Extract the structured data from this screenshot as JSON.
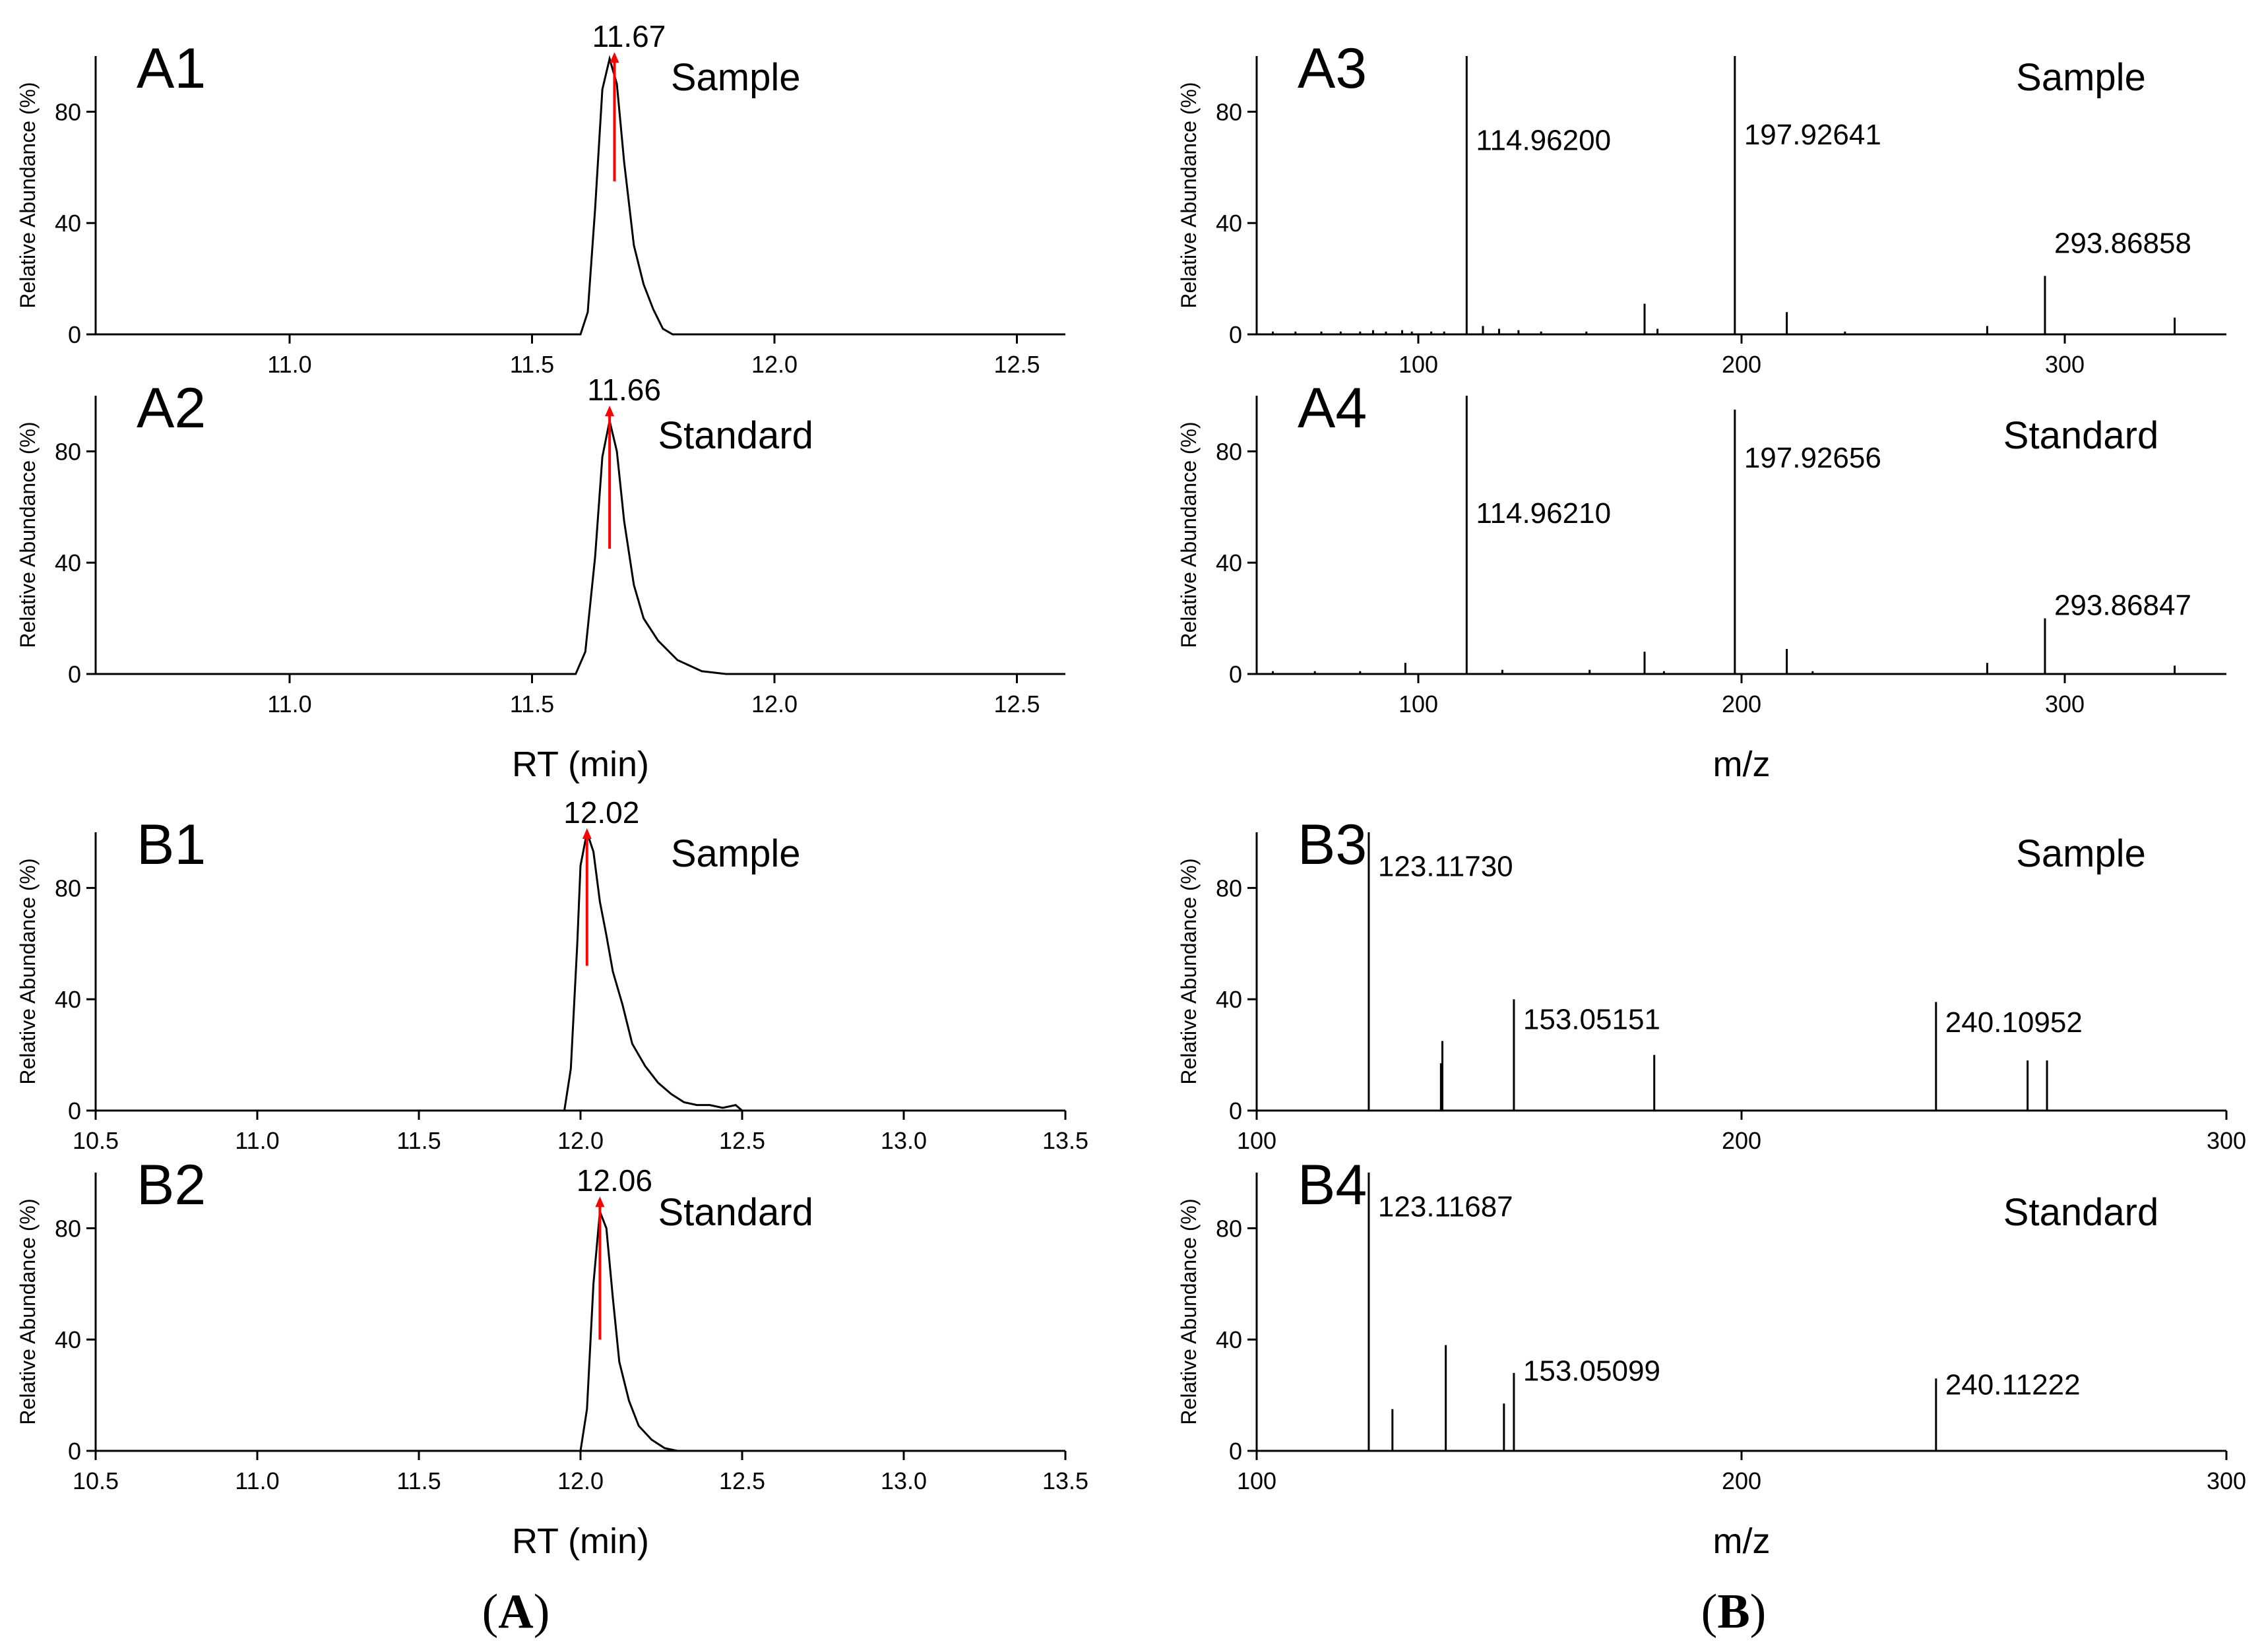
{
  "colors": {
    "axis": "#000000",
    "line": "#000000",
    "marker": "#ff0000",
    "background": "#ffffff"
  },
  "captions": {
    "left": {
      "paren_open": "(",
      "letter": "A",
      "paren_close": ")"
    },
    "right": {
      "paren_open": "(",
      "letter": "B",
      "paren_close": ")"
    }
  },
  "chart_data": [
    {
      "id": "A1",
      "type": "line",
      "panel_label": "A1",
      "label": "Sample",
      "xlabel": "",
      "ylabel": "Relative Abundance (%)",
      "xlim": [
        10.6,
        12.6
      ],
      "ylim": [
        0,
        100
      ],
      "show_x_axis": false,
      "xticks": [
        11.0,
        11.5,
        12.0,
        12.5
      ],
      "xticklabels": [
        "11.0",
        "11.5",
        "12.0",
        "12.5"
      ],
      "yticks": [
        0,
        40,
        80
      ],
      "yticklabels": [
        "0",
        "40",
        "80"
      ],
      "trace": {
        "x": [
          10.6,
          11.6,
          11.615,
          11.63,
          11.645,
          11.66,
          11.675,
          11.69,
          11.71,
          11.73,
          11.75,
          11.77,
          11.79,
          12.6
        ],
        "y": [
          0,
          0,
          8,
          45,
          88,
          99,
          90,
          62,
          32,
          18,
          9,
          2,
          0,
          0
        ]
      },
      "peak": {
        "x": 11.67,
        "y": 100,
        "label": "11.67",
        "marker_from": 55
      }
    },
    {
      "id": "A2",
      "type": "line",
      "panel_label": "A2",
      "label": "Standard",
      "xlabel": "RT (min)",
      "ylabel": "Relative Abundance (%)",
      "xlim": [
        10.6,
        12.6
      ],
      "ylim": [
        0,
        100
      ],
      "show_x_axis": false,
      "xticks": [
        11.0,
        11.5,
        12.0,
        12.5
      ],
      "xticklabels": [
        "11.0",
        "11.5",
        "12.0",
        "12.5"
      ],
      "yticks": [
        0,
        40,
        80
      ],
      "yticklabels": [
        "0",
        "40",
        "80"
      ],
      "trace": {
        "x": [
          10.6,
          11.59,
          11.61,
          11.63,
          11.645,
          11.66,
          11.675,
          11.69,
          11.71,
          11.73,
          11.76,
          11.8,
          11.85,
          11.9,
          12.6
        ],
        "y": [
          0,
          0,
          8,
          42,
          78,
          91,
          80,
          55,
          32,
          20,
          12,
          5,
          1,
          0,
          0
        ]
      },
      "peak": {
        "x": 11.66,
        "y": 95,
        "label": "11.66",
        "marker_from": 45
      }
    },
    {
      "id": "A3",
      "type": "bar",
      "panel_label": "A3",
      "label": "Sample",
      "xlabel": "",
      "ylabel": "Relative Abundance (%)",
      "xlim": [
        50,
        350
      ],
      "ylim": [
        0,
        100
      ],
      "show_x_axis": true,
      "xticks": [
        100,
        200,
        300
      ],
      "xticklabels": [
        "100",
        "200",
        "300"
      ],
      "yticks": [
        0,
        40,
        80
      ],
      "yticklabels": [
        "0",
        "40",
        "80"
      ],
      "mz": [
        55,
        62,
        70,
        76,
        82,
        86,
        90,
        95,
        98,
        104,
        108,
        114.962,
        120,
        125,
        131,
        138,
        152,
        170,
        174,
        197.92641,
        214,
        232,
        276,
        293.86858,
        334
      ],
      "intensity": [
        1,
        1,
        1,
        1,
        1,
        1.5,
        1,
        1.5,
        1,
        1,
        1,
        100,
        3,
        2,
        1.5,
        1,
        1,
        11,
        2,
        100,
        8,
        1,
        3,
        21,
        6
      ],
      "peak_labels": [
        {
          "mz": 114.962,
          "text": "114.96200",
          "y": 70
        },
        {
          "mz": 197.92641,
          "text": "197.92641",
          "y": 72
        },
        {
          "mz": 293.86858,
          "text": "293.86858",
          "y": 33
        }
      ]
    },
    {
      "id": "A4",
      "type": "bar",
      "panel_label": "A4",
      "label": "Standard",
      "xlabel": "m/z",
      "ylabel": "Relative Abundance (%)",
      "xlim": [
        50,
        350
      ],
      "ylim": [
        0,
        100
      ],
      "show_x_axis": true,
      "xticks": [
        100,
        200,
        300
      ],
      "xticklabels": [
        "100",
        "200",
        "300"
      ],
      "yticks": [
        0,
        40,
        80
      ],
      "yticklabels": [
        "0",
        "40",
        "80"
      ],
      "mz": [
        55,
        68,
        82,
        96,
        114.9621,
        126,
        153,
        170,
        176,
        197.92656,
        214,
        222,
        276,
        293.86847,
        334
      ],
      "intensity": [
        1,
        1,
        1,
        4,
        100,
        1.5,
        1.5,
        8,
        1,
        95,
        9,
        1,
        4,
        20,
        3
      ],
      "peak_labels": [
        {
          "mz": 114.9621,
          "text": "114.96210",
          "y": 58
        },
        {
          "mz": 197.92656,
          "text": "197.92656",
          "y": 78
        },
        {
          "mz": 293.86847,
          "text": "293.86847",
          "y": 25
        }
      ]
    },
    {
      "id": "B1",
      "type": "line",
      "panel_label": "B1",
      "label": "Sample",
      "xlabel": "",
      "ylabel": "Relative Abundance (%)",
      "xlim": [
        10.5,
        13.5
      ],
      "ylim": [
        0,
        100
      ],
      "show_x_axis": true,
      "xticks": [
        10.5,
        11.0,
        11.5,
        12.0,
        12.5,
        13.0,
        13.5
      ],
      "xticklabels": [
        "10.5",
        "11.0",
        "11.5",
        "12.0",
        "12.5",
        "13.0",
        "13.5"
      ],
      "yticks": [
        0,
        40,
        80
      ],
      "yticklabels": [
        "0",
        "40",
        "80"
      ],
      "trace": {
        "x": [
          10.5,
          11.95,
          11.97,
          11.99,
          12.0,
          12.02,
          12.04,
          12.06,
          12.08,
          12.1,
          12.13,
          12.16,
          12.2,
          12.24,
          12.28,
          12.32,
          12.36,
          12.4,
          12.44,
          12.48,
          12.5,
          13.5
        ],
        "y": [
          0,
          0,
          15,
          60,
          88,
          100,
          93,
          75,
          63,
          50,
          38,
          24,
          16,
          10,
          6,
          3,
          2,
          2,
          1,
          2,
          0,
          0
        ]
      },
      "peak": {
        "x": 12.02,
        "y": 100,
        "label": "12.02",
        "marker_from": 52
      }
    },
    {
      "id": "B2",
      "type": "line",
      "panel_label": "B2",
      "label": "Standard",
      "xlabel": "RT (min)",
      "ylabel": "Relative Abundance (%)",
      "xlim": [
        10.5,
        13.5
      ],
      "ylim": [
        0,
        100
      ],
      "show_x_axis": true,
      "xticks": [
        10.5,
        11.0,
        11.5,
        12.0,
        12.5,
        13.0,
        13.5
      ],
      "xticklabels": [
        "10.5",
        "11.0",
        "11.5",
        "12.0",
        "12.5",
        "13.0",
        "13.5"
      ],
      "yticks": [
        0,
        40,
        80
      ],
      "yticklabels": [
        "0",
        "40",
        "80"
      ],
      "trace": {
        "x": [
          10.5,
          12.0,
          12.02,
          12.04,
          12.06,
          12.08,
          12.1,
          12.12,
          12.15,
          12.18,
          12.22,
          12.26,
          12.3,
          13.5
        ],
        "y": [
          0,
          0,
          15,
          60,
          86,
          80,
          55,
          32,
          18,
          9,
          4,
          1,
          0,
          0
        ]
      },
      "peak": {
        "x": 12.06,
        "y": 90,
        "label": "12.06",
        "marker_from": 40
      }
    },
    {
      "id": "B3",
      "type": "bar",
      "panel_label": "B3",
      "label": "Sample",
      "xlabel": "",
      "ylabel": "Relative Abundance (%)",
      "xlim": [
        100,
        300
      ],
      "ylim": [
        0,
        100
      ],
      "show_x_axis": true,
      "xticks": [
        100,
        200,
        300
      ],
      "xticklabels": [
        "100",
        "200",
        "300"
      ],
      "yticks": [
        0,
        40,
        80
      ],
      "yticklabels": [
        "0",
        "40",
        "80"
      ],
      "mz": [
        123.1173,
        138,
        138.3,
        153.05151,
        182,
        240.10952,
        259,
        263
      ],
      "intensity": [
        100,
        17,
        25,
        40,
        20,
        39,
        18,
        18
      ],
      "peak_labels": [
        {
          "mz": 123.1173,
          "text": "123.11730",
          "y": 88
        },
        {
          "mz": 153.05151,
          "text": "153.05151",
          "y": 33
        },
        {
          "mz": 240.10952,
          "text": "240.10952",
          "y": 32
        }
      ]
    },
    {
      "id": "B4",
      "type": "bar",
      "panel_label": "B4",
      "label": "Standard",
      "xlabel": "m/z",
      "ylabel": "Relative Abundance (%)",
      "xlim": [
        100,
        300
      ],
      "ylim": [
        0,
        100
      ],
      "show_x_axis": true,
      "xticks": [
        100,
        200,
        300
      ],
      "xticklabels": [
        "100",
        "200",
        "300"
      ],
      "yticks": [
        0,
        40,
        80
      ],
      "yticklabels": [
        "0",
        "40",
        "80"
      ],
      "mz": [
        123.11687,
        128,
        139,
        151,
        153.05099,
        240.11222
      ],
      "intensity": [
        100,
        15,
        38,
        17,
        28,
        26
      ],
      "peak_labels": [
        {
          "mz": 123.11687,
          "text": "123.11687",
          "y": 88
        },
        {
          "mz": 153.05099,
          "text": "153.05099",
          "y": 29
        },
        {
          "mz": 240.11222,
          "text": "240.11222",
          "y": 24
        }
      ]
    }
  ]
}
